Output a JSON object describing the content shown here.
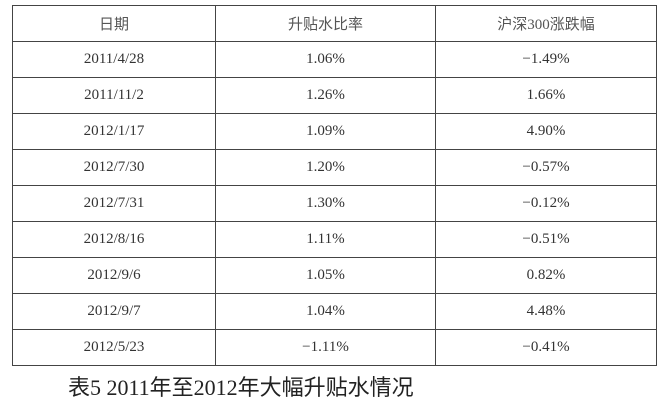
{
  "table": {
    "header": [
      "日期",
      "升贴水比率",
      "沪深300涨跌幅"
    ],
    "rows": [
      [
        "2011/4/28",
        "1.06%",
        "−1.49%"
      ],
      [
        "2011/11/2",
        "1.26%",
        "1.66%"
      ],
      [
        "2012/1/17",
        "1.09%",
        "4.90%"
      ],
      [
        "2012/7/30",
        "1.20%",
        "−0.57%"
      ],
      [
        "2012/7/31",
        "1.30%",
        "−0.12%"
      ],
      [
        "2012/8/16",
        "1.11%",
        "−0.51%"
      ],
      [
        "2012/9/6",
        "1.05%",
        "0.82%"
      ],
      [
        "2012/9/7",
        "1.04%",
        "4.48%"
      ],
      [
        "2012/5/23",
        "−1.11%",
        "−0.41%"
      ]
    ]
  },
  "caption": "表5 2011年至2012年大幅升贴水情况"
}
